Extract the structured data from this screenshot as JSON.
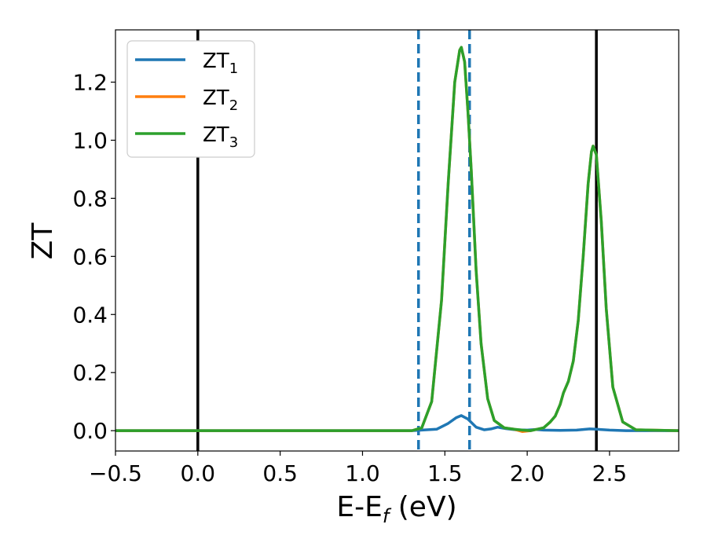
{
  "chart_data": {
    "type": "line",
    "xlabel": "E-E",
    "xlabel_sub": "f",
    "xlabel_unit": " (eV)",
    "ylabel": "ZT",
    "xlim": [
      -0.5,
      2.92
    ],
    "ylim": [
      -0.07,
      1.38
    ],
    "x_ticks": [
      -0.5,
      0.0,
      0.5,
      1.0,
      1.5,
      2.0,
      2.5
    ],
    "x_tick_labels": [
      "−0.5",
      "0.0",
      "0.5",
      "1.0",
      "1.5",
      "2.0",
      "2.5"
    ],
    "y_ticks": [
      0.0,
      0.2,
      0.4,
      0.6,
      0.8,
      1.0,
      1.2
    ],
    "y_tick_labels": [
      "0.0",
      "0.2",
      "0.4",
      "0.6",
      "0.8",
      "1.0",
      "1.2"
    ],
    "grid": false,
    "legend_position": "top-left",
    "series": [
      {
        "name": "ZT",
        "name_sub": "1",
        "color": "#1f77b4",
        "x": [
          -0.5,
          1.3,
          1.45,
          1.52,
          1.57,
          1.6,
          1.64,
          1.69,
          1.74,
          1.78,
          1.82,
          1.87,
          1.93,
          2.0,
          2.05,
          2.1,
          2.2,
          2.3,
          2.38,
          2.42,
          2.5,
          2.6,
          2.92
        ],
        "y": [
          0.0,
          0.0,
          0.005,
          0.025,
          0.045,
          0.052,
          0.04,
          0.012,
          0.003,
          0.006,
          0.012,
          0.007,
          0.003,
          0.002,
          0.004,
          0.002,
          0.001,
          0.002,
          0.006,
          0.005,
          0.002,
          0.0,
          0.0
        ]
      },
      {
        "name": "ZT",
        "name_sub": "2",
        "color": "#ff7f0e",
        "x": [
          -0.5,
          1.3,
          1.36,
          1.42,
          1.48,
          1.52,
          1.56,
          1.59,
          1.6,
          1.62,
          1.64,
          1.66,
          1.69,
          1.72,
          1.76,
          1.8,
          1.86,
          1.92,
          1.97,
          2.02,
          2.06,
          2.1,
          2.14,
          2.17,
          2.2,
          2.22,
          2.25,
          2.28,
          2.31,
          2.34,
          2.37,
          2.39,
          2.4,
          2.42,
          2.45,
          2.48,
          2.52,
          2.58,
          2.66,
          2.92
        ],
        "y": [
          0.0,
          0.0,
          0.01,
          0.1,
          0.45,
          0.85,
          1.2,
          1.31,
          1.32,
          1.27,
          1.1,
          0.9,
          0.55,
          0.3,
          0.11,
          0.035,
          0.01,
          0.005,
          -0.003,
          0.0,
          0.005,
          0.01,
          0.03,
          0.05,
          0.09,
          0.13,
          0.17,
          0.24,
          0.38,
          0.6,
          0.85,
          0.96,
          0.98,
          0.95,
          0.72,
          0.42,
          0.15,
          0.03,
          0.003,
          0.0
        ]
      },
      {
        "name": "ZT",
        "name_sub": "3",
        "color": "#2ca02c",
        "x": [
          -0.5,
          1.3,
          1.36,
          1.42,
          1.48,
          1.52,
          1.56,
          1.59,
          1.6,
          1.62,
          1.64,
          1.66,
          1.69,
          1.72,
          1.76,
          1.8,
          1.86,
          1.92,
          1.97,
          2.02,
          2.06,
          2.1,
          2.14,
          2.17,
          2.2,
          2.22,
          2.25,
          2.28,
          2.31,
          2.34,
          2.37,
          2.39,
          2.4,
          2.42,
          2.45,
          2.48,
          2.52,
          2.58,
          2.66,
          2.92
        ],
        "y": [
          0.0,
          0.0,
          0.01,
          0.1,
          0.45,
          0.85,
          1.2,
          1.31,
          1.32,
          1.27,
          1.1,
          0.9,
          0.55,
          0.3,
          0.11,
          0.035,
          0.01,
          0.005,
          0.002,
          0.0,
          0.005,
          0.01,
          0.03,
          0.05,
          0.09,
          0.13,
          0.17,
          0.24,
          0.38,
          0.6,
          0.85,
          0.96,
          0.98,
          0.95,
          0.72,
          0.42,
          0.15,
          0.03,
          0.003,
          0.0
        ]
      }
    ],
    "vlines": [
      {
        "x": 0.0,
        "color": "#000000",
        "style": "solid"
      },
      {
        "x": 2.42,
        "color": "#000000",
        "style": "solid"
      },
      {
        "x": 1.34,
        "color": "#1f77b4",
        "style": "dashed"
      },
      {
        "x": 1.65,
        "color": "#1f77b4",
        "style": "dashed"
      }
    ]
  }
}
